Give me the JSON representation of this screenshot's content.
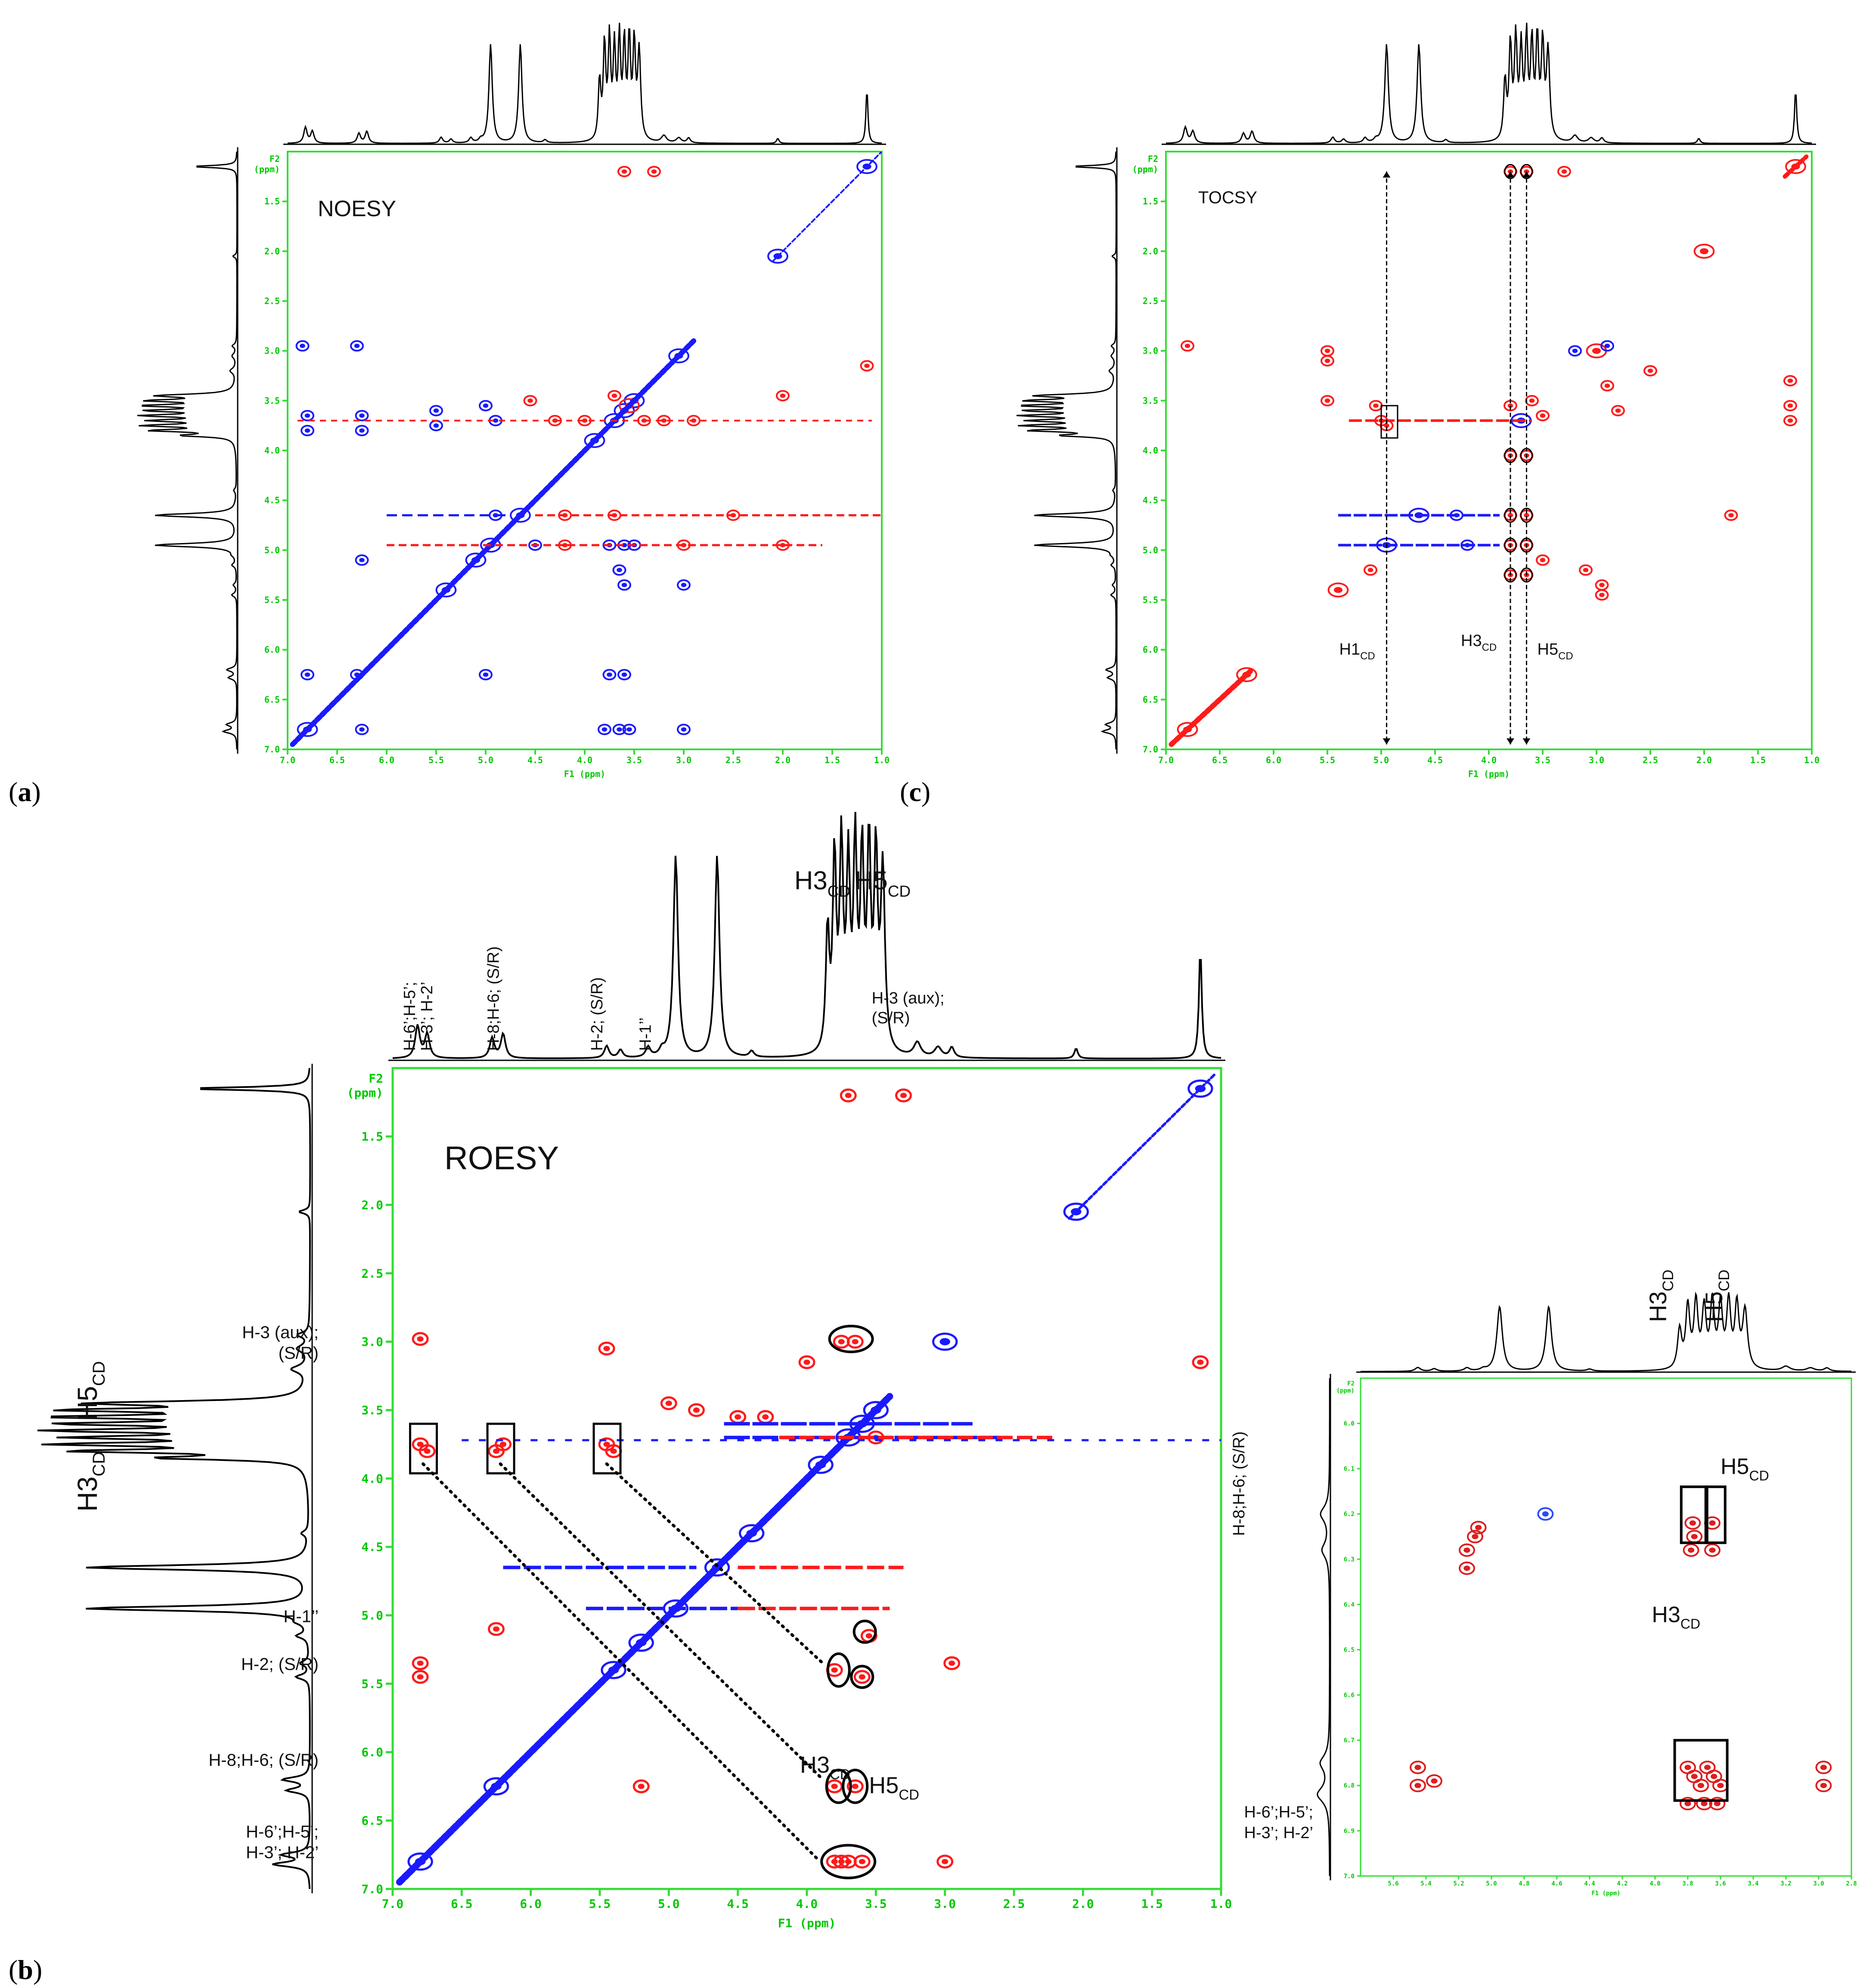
{
  "panels": [
    {
      "letter": "a",
      "wrap_l": "(",
      "wrap_r": ")"
    },
    {
      "letter": "c",
      "wrap_l": "(",
      "wrap_r": ")"
    },
    {
      "letter": "b",
      "wrap_l": "(",
      "wrap_r": ")"
    }
  ],
  "chart_data": [
    {
      "type": "scatter",
      "panel": "a",
      "title": "NOESY",
      "xlabel": "F1 (ppm)",
      "ylabel_top": "F2",
      "ylabel_unit": "(ppm)",
      "xlim": [
        7.0,
        1.0
      ],
      "ylim": [
        1.0,
        7.0
      ],
      "xticks": [
        "7.0",
        "6.5",
        "6.0",
        "5.5",
        "5.0",
        "4.5",
        "4.0",
        "3.5",
        "3.0",
        "2.5",
        "2.0",
        "1.5",
        "1.0"
      ],
      "yticks": [
        "1.5",
        "2.0",
        "2.5",
        "3.0",
        "3.5",
        "4.0",
        "4.5",
        "5.0",
        "5.5",
        "6.0",
        "6.5",
        "7.0"
      ],
      "series": [
        {
          "name": "positive",
          "color": "#1a1aff",
          "points": [
            [
              6.8,
              6.8
            ],
            [
              6.3,
              6.25
            ],
            [
              5.4,
              5.4
            ],
            [
              4.95,
              4.95
            ],
            [
              4.65,
              4.65
            ],
            [
              3.9,
              3.9
            ],
            [
              3.7,
              3.7
            ],
            [
              3.6,
              3.6
            ],
            [
              3.5,
              3.5
            ],
            [
              3.05,
              3.05
            ],
            [
              2.05,
              2.05
            ],
            [
              1.15,
              1.15
            ],
            [
              6.8,
              3.65
            ],
            [
              6.8,
              3.8
            ],
            [
              6.25,
              3.65
            ],
            [
              6.25,
              3.8
            ],
            [
              5.5,
              3.6
            ],
            [
              5.5,
              3.75
            ],
            [
              5.0,
              3.55
            ],
            [
              4.9,
              3.7
            ],
            [
              6.8,
              6.25
            ],
            [
              6.25,
              6.8
            ],
            [
              5.0,
              6.25
            ],
            [
              3.75,
              6.25
            ],
            [
              3.6,
              6.25
            ],
            [
              3.8,
              6.8
            ],
            [
              3.65,
              6.8
            ],
            [
              3.55,
              6.8
            ],
            [
              3.0,
              6.8
            ],
            [
              3.75,
              4.95
            ],
            [
              3.6,
              4.95
            ],
            [
              3.5,
              4.95
            ],
            [
              3.65,
              5.2
            ],
            [
              3.6,
              5.35
            ],
            [
              6.25,
              5.1
            ],
            [
              5.1,
              5.1
            ],
            [
              3.0,
              5.35
            ],
            [
              6.85,
              2.95
            ],
            [
              6.3,
              2.95
            ],
            [
              4.9,
              4.65
            ],
            [
              4.5,
              4.95
            ]
          ]
        },
        {
          "name": "negative",
          "color": "#ff1a1a",
          "points": [
            [
              3.6,
              1.2
            ],
            [
              3.3,
              1.2
            ],
            [
              3.7,
              3.45
            ],
            [
              3.55,
              3.55
            ],
            [
              3.4,
              3.7
            ],
            [
              1.15,
              3.15
            ],
            [
              2.0,
              3.45
            ],
            [
              4.3,
              3.7
            ],
            [
              4.0,
              3.7
            ],
            [
              3.2,
              3.7
            ],
            [
              2.9,
              3.7
            ],
            [
              4.2,
              4.65
            ],
            [
              3.7,
              4.65
            ],
            [
              2.5,
              4.65
            ],
            [
              4.2,
              4.95
            ],
            [
              3.0,
              4.95
            ],
            [
              2.0,
              4.95
            ],
            [
              4.55,
              3.5
            ]
          ]
        }
      ]
    },
    {
      "type": "scatter",
      "panel": "c",
      "title": "TOCSY",
      "xlabel": "F1 (ppm)",
      "ylabel_top": "F2",
      "ylabel_unit": "(ppm)",
      "xlim": [
        7.0,
        1.0
      ],
      "ylim": [
        1.0,
        7.0
      ],
      "xticks": [
        "7.0",
        "6.5",
        "6.0",
        "5.5",
        "5.0",
        "4.5",
        "4.0",
        "3.5",
        "3.0",
        "2.5",
        "2.0",
        "1.5",
        "1.0"
      ],
      "yticks": [
        "1.5",
        "2.0",
        "2.5",
        "3.0",
        "3.5",
        "4.0",
        "4.5",
        "5.0",
        "5.5",
        "6.0",
        "6.5",
        "7.0"
      ],
      "annotations": [
        {
          "text": "H1",
          "sub": "CD",
          "x": 4.95
        },
        {
          "text": "H3",
          "sub": "CD",
          "x": 3.8
        },
        {
          "text": "H5",
          "sub": "CD",
          "x": 3.65
        }
      ],
      "series": [
        {
          "name": "positive",
          "color": "#ff1a1a",
          "points": [
            [
              6.8,
              6.8
            ],
            [
              6.25,
              6.25
            ],
            [
              5.4,
              5.4
            ],
            [
              5.1,
              5.2
            ],
            [
              4.95,
              4.95
            ],
            [
              4.65,
              4.65
            ],
            [
              3.8,
              3.55
            ],
            [
              3.7,
              3.7
            ],
            [
              3.6,
              3.5
            ],
            [
              3.5,
              3.65
            ],
            [
              3.0,
              3.0
            ],
            [
              1.15,
              1.15
            ],
            [
              2.0,
              2.0
            ],
            [
              5.5,
              3.0
            ],
            [
              5.5,
              3.1
            ],
            [
              5.5,
              3.5
            ],
            [
              5.05,
              3.55
            ],
            [
              5.0,
              3.7
            ],
            [
              4.95,
              3.75
            ],
            [
              3.8,
              1.2
            ],
            [
              3.65,
              1.2
            ],
            [
              3.3,
              1.2
            ],
            [
              1.2,
              3.3
            ],
            [
              1.2,
              3.55
            ],
            [
              1.2,
              3.7
            ],
            [
              2.5,
              3.2
            ],
            [
              2.9,
              3.35
            ],
            [
              2.8,
              3.6
            ],
            [
              3.8,
              4.05
            ],
            [
              3.65,
              4.05
            ],
            [
              3.8,
              4.65
            ],
            [
              3.65,
              4.65
            ],
            [
              3.8,
              4.95
            ],
            [
              3.65,
              4.95
            ],
            [
              3.8,
              5.25
            ],
            [
              3.65,
              5.25
            ],
            [
              3.5,
              5.1
            ],
            [
              3.1,
              5.2
            ],
            [
              2.95,
              5.35
            ],
            [
              2.95,
              5.45
            ],
            [
              6.8,
              2.95
            ],
            [
              1.75,
              4.65
            ]
          ]
        },
        {
          "name": "negative",
          "color": "#1a1aff",
          "points": [
            [
              4.65,
              4.65
            ],
            [
              4.95,
              4.95
            ],
            [
              4.3,
              4.65
            ],
            [
              4.2,
              4.95
            ],
            [
              3.7,
              3.7
            ],
            [
              3.2,
              3.0
            ],
            [
              2.9,
              2.95
            ]
          ]
        }
      ]
    },
    {
      "type": "scatter",
      "panel": "b",
      "title": "ROESY",
      "xlabel": "F1 (ppm)",
      "ylabel_top": "F2",
      "ylabel_unit": "(ppm)",
      "xlim": [
        7.0,
        1.0
      ],
      "ylim": [
        1.0,
        7.0
      ],
      "xticks": [
        "7.0",
        "6.5",
        "6.0",
        "5.5",
        "5.0",
        "4.5",
        "4.0",
        "3.5",
        "3.0",
        "2.5",
        "2.0",
        "1.5",
        "1.0"
      ],
      "yticks": [
        "1.5",
        "2.0",
        "2.5",
        "3.0",
        "3.5",
        "4.0",
        "4.5",
        "5.0",
        "5.5",
        "6.0",
        "6.5",
        "7.0"
      ],
      "top_labels": [
        {
          "lines": [
            "H-6’;H-5’;",
            "H-3’; H-2’"
          ],
          "x": 6.75
        },
        {
          "lines": [
            "H-8;H-6; (S/R)"
          ],
          "x": 6.2
        },
        {
          "lines": [
            "H-2; (S/R)"
          ],
          "x": 5.45
        },
        {
          "lines": [
            "H-1’’"
          ],
          "x": 5.1
        },
        {
          "lines": [
            "H-3 (aux);",
            "(S/R)"
          ],
          "x": 3.0
        }
      ],
      "top_cd": {
        "h3": "H3",
        "h5": "H5",
        "sub": "CD"
      },
      "left_labels": [
        {
          "lines": [
            "H-3 (aux);",
            "(S/R)"
          ],
          "ppm": 3.05
        },
        {
          "lines": [
            "H-1’’"
          ],
          "ppm": 5.05
        },
        {
          "lines": [
            "H-2; (S/R)"
          ],
          "ppm": 5.4
        },
        {
          "lines": [
            "H-8;H-6; (S/R)"
          ],
          "ppm": 6.1
        },
        {
          "lines": [
            "H-6’;H-5’;",
            "H-3’; H-2’"
          ],
          "ppm": 6.7
        }
      ],
      "left_cd": {
        "h3": "H3",
        "h5": "H5",
        "sub": "CD"
      },
      "cross_labels": {
        "h3": "H3",
        "h5": "H5",
        "sub": "CD"
      },
      "series": [
        {
          "name": "diagonal",
          "color": "#1a1aff",
          "points": [
            [
              6.8,
              6.8
            ],
            [
              6.25,
              6.25
            ],
            [
              5.4,
              5.4
            ],
            [
              4.95,
              4.95
            ],
            [
              4.65,
              4.65
            ],
            [
              3.9,
              3.9
            ],
            [
              3.7,
              3.7
            ],
            [
              3.6,
              3.6
            ],
            [
              3.5,
              3.5
            ],
            [
              3.0,
              3.0
            ],
            [
              2.05,
              2.05
            ],
            [
              1.15,
              1.15
            ],
            [
              4.4,
              4.4
            ],
            [
              5.2,
              5.2
            ]
          ]
        },
        {
          "name": "cross",
          "color": "#ff1a1a",
          "points": [
            [
              6.8,
              3.75
            ],
            [
              6.75,
              3.8
            ],
            [
              6.2,
              3.75
            ],
            [
              6.25,
              3.8
            ],
            [
              5.45,
              3.75
            ],
            [
              5.4,
              3.8
            ],
            [
              3.8,
              6.8
            ],
            [
              3.75,
              6.8
            ],
            [
              3.7,
              6.8
            ],
            [
              3.6,
              6.8
            ],
            [
              3.8,
              6.25
            ],
            [
              3.65,
              6.25
            ],
            [
              3.8,
              5.4
            ],
            [
              3.6,
              5.45
            ],
            [
              3.55,
              5.15
            ],
            [
              3.75,
              3.0
            ],
            [
              3.65,
              3.0
            ],
            [
              3.7,
              1.2
            ],
            [
              3.3,
              1.2
            ],
            [
              6.8,
              2.98
            ],
            [
              6.8,
              5.35
            ],
            [
              6.8,
              5.45
            ],
            [
              6.25,
              5.1
            ],
            [
              5.45,
              3.05
            ],
            [
              5.0,
              3.45
            ],
            [
              4.8,
              3.5
            ],
            [
              4.5,
              3.55
            ],
            [
              4.3,
              3.55
            ],
            [
              1.15,
              3.15
            ],
            [
              3.5,
              3.7
            ],
            [
              3.0,
              6.8
            ],
            [
              2.95,
              5.35
            ],
            [
              5.2,
              6.25
            ],
            [
              4.0,
              3.15
            ]
          ]
        }
      ]
    },
    {
      "type": "scatter",
      "panel": "inset",
      "xlabel": "F1 (ppm)",
      "ylabel_top": "F2",
      "ylabel_unit": "(ppm)",
      "xlim": [
        5.8,
        2.8
      ],
      "ylim": [
        5.9,
        7.0
      ],
      "xticks": [
        "5.6",
        "5.4",
        "5.2",
        "5.0",
        "4.8",
        "4.6",
        "4.4",
        "4.2",
        "4.0",
        "3.8",
        "3.6",
        "3.4",
        "3.2",
        "3.0",
        "2.8"
      ],
      "yticks": [
        "6.0",
        "6.1",
        "6.2",
        "6.3",
        "6.4",
        "6.5",
        "6.6",
        "6.7",
        "6.8",
        "6.9",
        "7.0"
      ],
      "cd": {
        "h3": "H3",
        "h5": "H5",
        "sub": "CD"
      },
      "left_labels": [
        {
          "lines": [
            "H-8;H-6; (S/R)"
          ],
          "ppm": 6.22
        },
        {
          "lines": [
            "H-6’;H-5’;",
            "H-3’; H-2’"
          ],
          "ppm": 6.78
        }
      ],
      "series": [
        {
          "name": "positive",
          "color": "#dd1e1e",
          "points": [
            [
              3.77,
              6.22
            ],
            [
              3.76,
              6.25
            ],
            [
              3.78,
              6.28
            ],
            [
              3.65,
              6.22
            ],
            [
              3.65,
              6.28
            ],
            [
              5.1,
              6.25
            ],
            [
              5.08,
              6.23
            ],
            [
              5.15,
              6.28
            ],
            [
              5.15,
              6.32
            ],
            [
              3.8,
              6.76
            ],
            [
              3.76,
              6.78
            ],
            [
              3.72,
              6.8
            ],
            [
              3.68,
              6.76
            ],
            [
              3.64,
              6.78
            ],
            [
              3.6,
              6.8
            ],
            [
              3.8,
              6.84
            ],
            [
              3.7,
              6.84
            ],
            [
              3.62,
              6.84
            ],
            [
              5.45,
              6.76
            ],
            [
              5.45,
              6.8
            ],
            [
              5.35,
              6.79
            ],
            [
              2.97,
              6.76
            ],
            [
              2.97,
              6.8
            ]
          ]
        },
        {
          "name": "negative",
          "color": "#2a4aff",
          "points": [
            [
              4.67,
              6.2
            ]
          ]
        }
      ]
    }
  ]
}
